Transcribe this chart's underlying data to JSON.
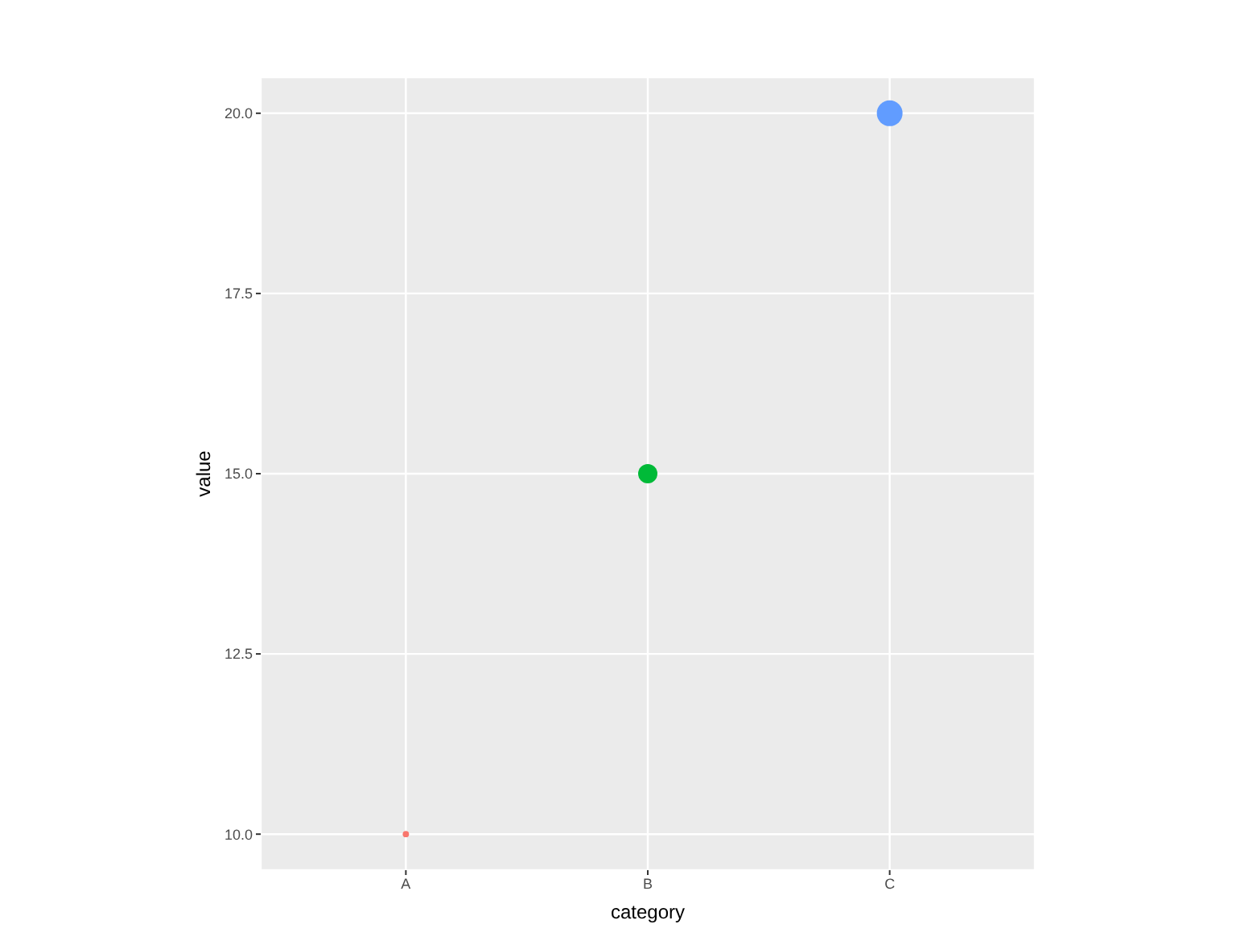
{
  "chart_data": {
    "type": "bubble",
    "xlabel": "category",
    "ylabel": "value",
    "categories": [
      "A",
      "B",
      "C"
    ],
    "values": [
      10,
      15,
      20
    ],
    "sizes": [
      0.06,
      0.56,
      1
    ],
    "colors": [
      "#f8766d",
      "#00ba38",
      "#619cff"
    ],
    "ylim": [
      9.5,
      20.5
    ],
    "yticks": [
      {
        "value": 10,
        "label": "10.0"
      },
      12.5,
      {
        "value": 15,
        "label": "15.0"
      },
      17.5,
      {
        "value": 20,
        "label": "20.0"
      }
    ],
    "grid": true
  }
}
